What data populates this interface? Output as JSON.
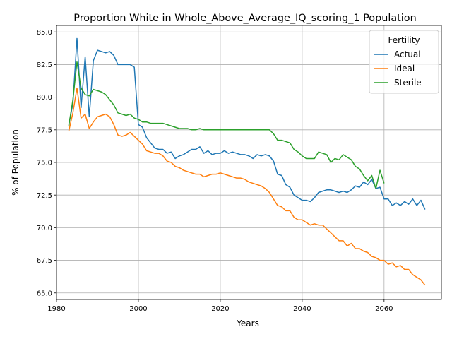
{
  "chart_data": {
    "type": "line",
    "title": "Proportion White in Whole_Above_Average_IQ_scoring_1 Population",
    "xlabel": "Years",
    "ylabel": "% of Population",
    "xlim": [
      1980,
      2074
    ],
    "ylim": [
      64.5,
      85.5
    ],
    "x_ticks": [
      1980,
      2000,
      2020,
      2040,
      2060
    ],
    "y_ticks": [
      65.0,
      67.5,
      70.0,
      72.5,
      75.0,
      77.5,
      80.0,
      82.5,
      85.0
    ],
    "x_tick_labels": [
      "1980",
      "2000",
      "2020",
      "2040",
      "2060"
    ],
    "y_tick_labels": [
      "65.0",
      "67.5",
      "70.0",
      "72.5",
      "75.0",
      "77.5",
      "80.0",
      "82.5",
      "85.0"
    ],
    "grid": true,
    "legend": {
      "title": "Fertility",
      "placement": "top-right"
    },
    "series": [
      {
        "name": "Actual",
        "color": "#1f77b4",
        "x": [
          1983,
          1984,
          1985,
          1986,
          1987,
          1988,
          1989,
          1990,
          1991,
          1992,
          1993,
          1994,
          1995,
          1996,
          1997,
          1998,
          1999,
          2000,
          2001,
          2002,
          2003,
          2004,
          2005,
          2006,
          2007,
          2008,
          2009,
          2010,
          2011,
          2012,
          2013,
          2014,
          2015,
          2016,
          2017,
          2018,
          2019,
          2020,
          2021,
          2022,
          2023,
          2024,
          2025,
          2026,
          2027,
          2028,
          2029,
          2030,
          2031,
          2032,
          2033,
          2034,
          2035,
          2036,
          2037,
          2038,
          2039,
          2040,
          2041,
          2042,
          2043,
          2044,
          2045,
          2046,
          2047,
          2048,
          2049,
          2050,
          2051,
          2052,
          2053,
          2054,
          2055,
          2056,
          2057,
          2058,
          2059,
          2060,
          2061,
          2062,
          2063,
          2064,
          2065,
          2066,
          2067,
          2068,
          2069,
          2070
        ],
        "y": [
          77.9,
          79.5,
          84.5,
          79.2,
          83.1,
          78.5,
          82.8,
          83.6,
          83.5,
          83.4,
          83.5,
          83.2,
          82.5,
          82.5,
          82.5,
          82.5,
          82.3,
          77.9,
          77.7,
          76.9,
          76.5,
          76.1,
          76.0,
          76.0,
          75.7,
          75.8,
          75.3,
          75.5,
          75.6,
          75.8,
          76.0,
          76.0,
          76.2,
          75.7,
          75.9,
          75.6,
          75.7,
          75.7,
          75.9,
          75.7,
          75.8,
          75.7,
          75.6,
          75.6,
          75.5,
          75.3,
          75.6,
          75.5,
          75.6,
          75.5,
          75.1,
          74.1,
          74.0,
          73.3,
          73.1,
          72.5,
          72.3,
          72.1,
          72.1,
          72.0,
          72.3,
          72.7,
          72.8,
          72.9,
          72.9,
          72.8,
          72.7,
          72.8,
          72.7,
          72.9,
          73.2,
          73.1,
          73.5,
          73.3,
          73.7,
          73.0,
          73.1,
          72.2,
          72.2,
          71.7,
          71.9,
          71.7,
          72.0,
          71.8,
          72.2,
          71.7,
          72.1,
          71.4
        ]
      },
      {
        "name": "Ideal",
        "color": "#ff7f0e",
        "x": [
          1983,
          1984,
          1985,
          1986,
          1987,
          1988,
          1989,
          1990,
          1991,
          1992,
          1993,
          1994,
          1995,
          1996,
          1997,
          1998,
          1999,
          2000,
          2001,
          2002,
          2003,
          2004,
          2005,
          2006,
          2007,
          2008,
          2009,
          2010,
          2011,
          2012,
          2013,
          2014,
          2015,
          2016,
          2017,
          2018,
          2019,
          2020,
          2021,
          2022,
          2023,
          2024,
          2025,
          2026,
          2027,
          2028,
          2029,
          2030,
          2031,
          2032,
          2033,
          2034,
          2035,
          2036,
          2037,
          2038,
          2039,
          2040,
          2041,
          2042,
          2043,
          2044,
          2045,
          2046,
          2047,
          2048,
          2049,
          2050,
          2051,
          2052,
          2053,
          2054,
          2055,
          2056,
          2057,
          2058,
          2059,
          2060,
          2061,
          2062,
          2063,
          2064,
          2065,
          2066,
          2067,
          2068,
          2069,
          2070
        ],
        "y": [
          77.4,
          78.8,
          80.7,
          78.4,
          78.7,
          77.6,
          78.1,
          78.5,
          78.6,
          78.7,
          78.5,
          77.9,
          77.1,
          77.0,
          77.1,
          77.3,
          77.0,
          76.7,
          76.4,
          75.9,
          75.8,
          75.7,
          75.7,
          75.5,
          75.1,
          75.0,
          74.7,
          74.6,
          74.4,
          74.3,
          74.2,
          74.1,
          74.1,
          73.9,
          74.0,
          74.1,
          74.1,
          74.2,
          74.1,
          74.0,
          73.9,
          73.8,
          73.8,
          73.7,
          73.5,
          73.4,
          73.3,
          73.2,
          73.0,
          72.7,
          72.2,
          71.7,
          71.6,
          71.3,
          71.3,
          70.8,
          70.6,
          70.6,
          70.4,
          70.2,
          70.3,
          70.2,
          70.2,
          69.9,
          69.6,
          69.3,
          69.0,
          69.0,
          68.6,
          68.8,
          68.4,
          68.4,
          68.2,
          68.1,
          67.8,
          67.7,
          67.5,
          67.5,
          67.2,
          67.3,
          67.0,
          67.1,
          66.8,
          66.8,
          66.4,
          66.2,
          66.0,
          65.6
        ]
      },
      {
        "name": "Sterile",
        "color": "#2ca02c",
        "x": [
          1983,
          1984,
          1985,
          1986,
          1987,
          1988,
          1989,
          1990,
          1991,
          1992,
          1993,
          1994,
          1995,
          1996,
          1997,
          1998,
          1999,
          2000,
          2001,
          2002,
          2003,
          2004,
          2005,
          2006,
          2007,
          2008,
          2009,
          2010,
          2011,
          2012,
          2013,
          2014,
          2015,
          2016,
          2017,
          2018,
          2019,
          2020,
          2021,
          2022,
          2023,
          2024,
          2025,
          2026,
          2027,
          2028,
          2029,
          2030,
          2031,
          2032,
          2033,
          2034,
          2035,
          2036,
          2037,
          2038,
          2039,
          2040,
          2041,
          2042,
          2043,
          2044,
          2045,
          2046,
          2047,
          2048,
          2049,
          2050,
          2051,
          2052,
          2053,
          2054,
          2055,
          2056,
          2057,
          2058,
          2059,
          2060
        ],
        "y": [
          77.8,
          79.8,
          82.7,
          80.7,
          80.2,
          80.1,
          80.6,
          80.5,
          80.4,
          80.2,
          79.8,
          79.4,
          78.8,
          78.7,
          78.6,
          78.7,
          78.4,
          78.3,
          78.1,
          78.1,
          78.0,
          78.0,
          78.0,
          78.0,
          77.9,
          77.8,
          77.7,
          77.6,
          77.6,
          77.6,
          77.5,
          77.5,
          77.6,
          77.5,
          77.5,
          77.5,
          77.5,
          77.5,
          77.5,
          77.5,
          77.5,
          77.5,
          77.5,
          77.5,
          77.5,
          77.5,
          77.5,
          77.5,
          77.5,
          77.5,
          77.2,
          76.7,
          76.7,
          76.6,
          76.5,
          76.0,
          75.8,
          75.5,
          75.3,
          75.3,
          75.3,
          75.8,
          75.7,
          75.6,
          75.0,
          75.3,
          75.2,
          75.6,
          75.4,
          75.2,
          74.7,
          74.5,
          74.0,
          73.6,
          74.0,
          73.0,
          74.4,
          73.4
        ]
      }
    ]
  }
}
